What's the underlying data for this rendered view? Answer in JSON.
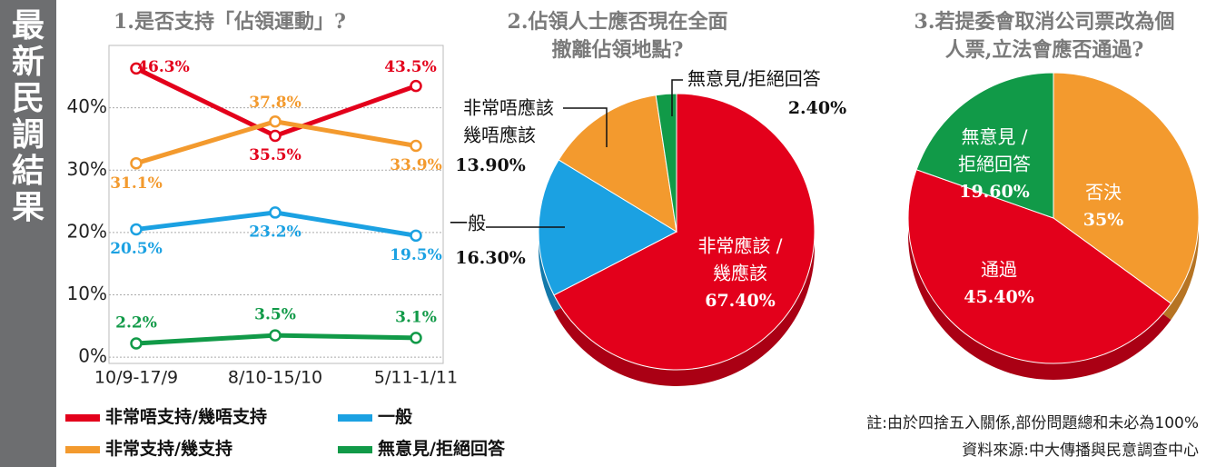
{
  "banner": "最新民調結果",
  "chart_data": [
    {
      "type": "line",
      "title": [
        "1.是否支持「佔領運動」?"
      ],
      "categories": [
        "10/9-17/9",
        "8/10-15/10",
        "5/11-1/11"
      ],
      "ylim": [
        -1,
        50
      ],
      "yticks": [
        {
          "value": 0,
          "label": "0%"
        },
        {
          "value": 10,
          "label": "10%"
        },
        {
          "value": 20,
          "label": "20%"
        },
        {
          "value": 30,
          "label": "30%"
        },
        {
          "value": 40,
          "label": "40%"
        }
      ],
      "grid": true,
      "series": [
        {
          "name": "非常唔支持/幾唔支持",
          "color": "#e3001b",
          "values": [
            46.3,
            35.5,
            43.5
          ],
          "value_labels": [
            "46.3%",
            "35.5%",
            "43.5%"
          ]
        },
        {
          "name": "非常支持/幾支持",
          "color": "#f39a2e",
          "values": [
            31.1,
            37.8,
            33.9
          ],
          "value_labels": [
            "31.1%",
            "37.8%",
            "33.9%"
          ]
        },
        {
          "name": "一般",
          "color": "#1ba1e2",
          "values": [
            20.5,
            23.2,
            19.5
          ],
          "value_labels": [
            "20.5%",
            "23.2%",
            "19.5%"
          ]
        },
        {
          "name": "無意見/拒絕回答",
          "color": "#119a48",
          "values": [
            2.2,
            3.5,
            3.1
          ],
          "value_labels": [
            "2.2%",
            "3.5%",
            "3.1%"
          ]
        }
      ]
    },
    {
      "type": "pie",
      "title": [
        "2.佔領人士應否現在全面",
        "撤離佔領地點?"
      ],
      "categories": [
        [
          "非常應該 /",
          "幾應該"
        ],
        [
          "一般"
        ],
        [
          "非常唔應該",
          "幾唔應該"
        ],
        [
          "無意見/拒絕回答"
        ]
      ],
      "values": [
        67.4,
        16.3,
        13.9,
        2.4
      ],
      "value_labels": [
        "67.40%",
        "16.30%",
        "13.90%",
        "2.40%"
      ],
      "colors": [
        "#e3001b",
        "#1ba1e2",
        "#f39a2e",
        "#119a48"
      ]
    },
    {
      "type": "pie",
      "title": [
        "3.若提委會取消公司票改為個",
        "人票,立法會應否通過?"
      ],
      "categories": [
        [
          "否決"
        ],
        [
          "通過"
        ],
        [
          "無意見 /",
          "拒絕回答"
        ]
      ],
      "values": [
        35,
        45.4,
        19.6
      ],
      "value_labels": [
        "35%",
        "45.40%",
        "19.60%"
      ],
      "colors": [
        "#f39a2e",
        "#e3001b",
        "#119a48"
      ]
    }
  ],
  "notes": [
    "註:由於四捨五入關係,部份問題總和未必為100%",
    "資料來源:中大傳播與民意調查中心"
  ]
}
